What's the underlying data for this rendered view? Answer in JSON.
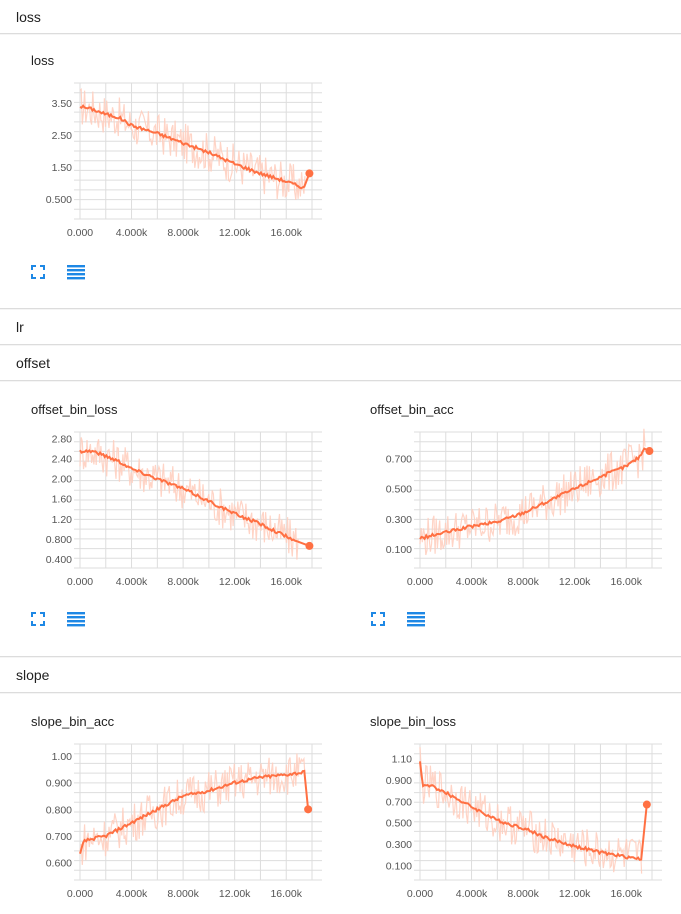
{
  "sections": {
    "loss": "loss",
    "lr": "lr",
    "offset": "offset",
    "slope": "slope"
  },
  "cards": {
    "loss": "loss",
    "offset_bin_loss": "offset_bin_loss",
    "offset_bin_acc": "offset_bin_acc",
    "slope_bin_acc": "slope_bin_acc",
    "slope_bin_loss": "slope_bin_loss"
  },
  "icons": {
    "expand": "fit-screen-icon",
    "data": "data-table-icon"
  },
  "colors": {
    "smoothed": "#ff7043",
    "raw": "#ffccbc",
    "grid": "#dddddd",
    "icon": "#1e88e5"
  },
  "chart_data": [
    {
      "id": "loss",
      "type": "line",
      "title": "loss",
      "xticks": [
        "0.000",
        "4.000k",
        "8.000k",
        "12.00k",
        "16.00k"
      ],
      "yticks": [
        "0.500",
        "1.50",
        "2.50",
        "3.50"
      ],
      "xlim": [
        0,
        18000
      ],
      "ylim": [
        0.0,
        4.0
      ],
      "series": [
        {
          "values": [
            [
              0,
              3.4
            ],
            [
              1000,
              3.3
            ],
            [
              2000,
              3.15
            ],
            [
              3000,
              3.05
            ],
            [
              4000,
              2.8
            ],
            [
              6000,
              2.55
            ],
            [
              8000,
              2.25
            ],
            [
              10000,
              1.95
            ],
            [
              12000,
              1.6
            ],
            [
              14000,
              1.3
            ],
            [
              16000,
              1.05
            ],
            [
              17000,
              0.9
            ],
            [
              17500,
              0.85
            ],
            [
              17800,
              1.3
            ]
          ]
        }
      ]
    },
    {
      "id": "offset_bin_loss",
      "type": "line",
      "title": "offset_bin_loss",
      "xticks": [
        "0.000",
        "4.000k",
        "8.000k",
        "12.00k",
        "16.00k"
      ],
      "yticks": [
        "0.400",
        "0.800",
        "1.20",
        "1.60",
        "2.00",
        "2.40",
        "2.80"
      ],
      "xlim": [
        0,
        18000
      ],
      "ylim": [
        0.3,
        2.85
      ],
      "series": [
        {
          "values": [
            [
              0,
              2.55
            ],
            [
              1000,
              2.55
            ],
            [
              2000,
              2.45
            ],
            [
              3000,
              2.35
            ],
            [
              4000,
              2.2
            ],
            [
              6000,
              2.0
            ],
            [
              8000,
              1.8
            ],
            [
              10000,
              1.55
            ],
            [
              12000,
              1.3
            ],
            [
              14000,
              1.1
            ],
            [
              16000,
              0.85
            ],
            [
              17000,
              0.72
            ],
            [
              17800,
              0.66
            ]
          ]
        }
      ]
    },
    {
      "id": "offset_bin_acc",
      "type": "line",
      "title": "offset_bin_acc",
      "xticks": [
        "0.000",
        "4.000k",
        "8.000k",
        "12.00k",
        "16.00k"
      ],
      "yticks": [
        "0.100",
        "0.300",
        "0.500",
        "0.700"
      ],
      "xlim": [
        0,
        18000
      ],
      "ylim": [
        0.0,
        0.85
      ],
      "series": [
        {
          "values": [
            [
              0,
              0.17
            ],
            [
              1000,
              0.19
            ],
            [
              2000,
              0.21
            ],
            [
              4000,
              0.25
            ],
            [
              6000,
              0.28
            ],
            [
              8000,
              0.34
            ],
            [
              10000,
              0.42
            ],
            [
              12000,
              0.5
            ],
            [
              14000,
              0.58
            ],
            [
              16000,
              0.65
            ],
            [
              17000,
              0.71
            ],
            [
              17500,
              0.78
            ],
            [
              17800,
              0.75
            ]
          ]
        }
      ]
    },
    {
      "id": "slope_bin_acc",
      "type": "line",
      "title": "slope_bin_acc",
      "xticks": [
        "0.000",
        "4.000k",
        "8.000k",
        "12.00k",
        "16.00k"
      ],
      "yticks": [
        "0.600",
        "0.700",
        "0.800",
        "0.900",
        "1.00"
      ],
      "xlim": [
        0,
        18000
      ],
      "ylim": [
        0.55,
        1.03
      ],
      "series": [
        {
          "values": [
            [
              0,
              0.63
            ],
            [
              300,
              0.68
            ],
            [
              1000,
              0.69
            ],
            [
              2000,
              0.7
            ],
            [
              4000,
              0.75
            ],
            [
              6000,
              0.8
            ],
            [
              8000,
              0.85
            ],
            [
              10000,
              0.87
            ],
            [
              12000,
              0.9
            ],
            [
              14000,
              0.92
            ],
            [
              16000,
              0.93
            ],
            [
              17500,
              0.94
            ],
            [
              17700,
              0.8
            ]
          ]
        }
      ]
    },
    {
      "id": "slope_bin_loss",
      "type": "line",
      "title": "slope_bin_loss",
      "xticks": [
        "0.000",
        "4.000k",
        "8.000k",
        "12.00k",
        "16.00k"
      ],
      "yticks": [
        "0.100",
        "0.300",
        "0.500",
        "0.700",
        "0.900",
        "1.10"
      ],
      "xlim": [
        0,
        18000
      ],
      "ylim": [
        0.0,
        1.2
      ],
      "series": [
        {
          "values": [
            [
              0,
              1.08
            ],
            [
              200,
              0.85
            ],
            [
              1000,
              0.84
            ],
            [
              2000,
              0.78
            ],
            [
              4000,
              0.65
            ],
            [
              6000,
              0.52
            ],
            [
              8000,
              0.45
            ],
            [
              10000,
              0.35
            ],
            [
              12000,
              0.28
            ],
            [
              14000,
              0.22
            ],
            [
              16000,
              0.18
            ],
            [
              17200,
              0.16
            ],
            [
              17600,
              0.67
            ]
          ]
        }
      ]
    }
  ]
}
